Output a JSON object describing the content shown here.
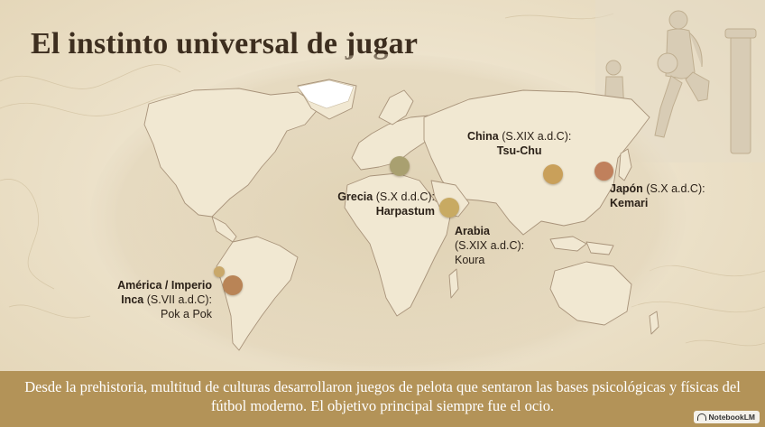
{
  "title": "El instinto universal de jugar",
  "locations": [
    {
      "name": "China",
      "date": "(S.XIX a.d.C):",
      "game": "Tsu-Chu",
      "color": "#c9a05a"
    },
    {
      "name": "Japón",
      "date": "(S.X a.d.C):",
      "game": "Kemari",
      "color": "#c0805c"
    },
    {
      "name": "Grecia",
      "date": "(S.X d.d.C):",
      "game": "Harpastum",
      "color": "#a9a070"
    },
    {
      "name": "Arabia",
      "date": "(S.XIX a.d.C):",
      "game": "Koura",
      "color": "#c8aa62"
    },
    {
      "name": "América / Imperio",
      "name2": "Inca",
      "date": "(S.VII a.d.C):",
      "game": "Pok a Pok",
      "color": "#b98456"
    }
  ],
  "footer": "Desde la prehistoria, multitud de culturas desarrollaron juegos de pelota que sentaron las bases psicológicas y físicas del fútbol moderno. El objetivo principal siempre fue el ocio.",
  "brand": "NotebookLM"
}
